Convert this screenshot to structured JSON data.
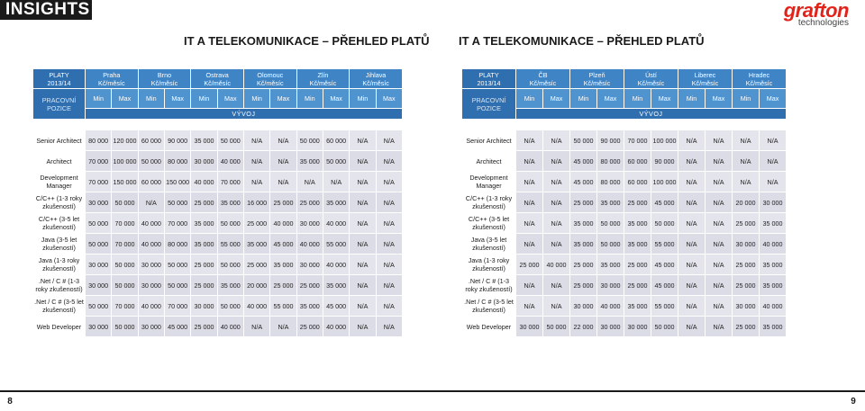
{
  "header": {
    "insights": "INSIGHTS",
    "logo_main": "grafton",
    "logo_sub": "technologies"
  },
  "pages": [
    {
      "title": "IT A TELEKOMUNIKACE – PŘEHLED PLATŮ",
      "corner_line1": "PLATY",
      "corner_line2": "2013/14",
      "corner_line3": "PRACOVNÍ",
      "corner_line4": "POZICE",
      "cities": [
        {
          "name": "Praha",
          "unit": "Kč/měsíc"
        },
        {
          "name": "Brno",
          "unit": "Kč/měsíc"
        },
        {
          "name": "Ostrava",
          "unit": "Kč/měsíc"
        },
        {
          "name": "Olomouc",
          "unit": "Kč/měsíc"
        },
        {
          "name": "Zlín",
          "unit": "Kč/měsíc"
        },
        {
          "name": "Jihlava",
          "unit": "Kč/měsíc"
        }
      ],
      "min_label": "Min",
      "max_label": "Max",
      "section": "VÝVOJ",
      "rows": [
        {
          "role": "Senior Architect",
          "bold": true,
          "values": [
            "80 000",
            "120 000",
            "60 000",
            "90 000",
            "35 000",
            "50 000",
            "N/A",
            "N/A",
            "50 000",
            "60 000",
            "N/A",
            "N/A"
          ]
        },
        {
          "role": "Architect",
          "bold": true,
          "values": [
            "70 000",
            "100 000",
            "50 000",
            "80 000",
            "30 000",
            "40 000",
            "N/A",
            "N/A",
            "35 000",
            "50 000",
            "N/A",
            "N/A"
          ]
        },
        {
          "role": "Development Manager",
          "bold": false,
          "values": [
            "70 000",
            "150 000",
            "60 000",
            "150 000",
            "40 000",
            "70 000",
            "N/A",
            "N/A",
            "N/A",
            "N/A",
            "N/A",
            "N/A"
          ]
        },
        {
          "role": "C/C++ (1-3 roky zkušeností)",
          "bold": false,
          "values": [
            "30 000",
            "50 000",
            "N/A",
            "50 000",
            "25 000",
            "35 000",
            "16 000",
            "25 000",
            "25 000",
            "35 000",
            "N/A",
            "N/A"
          ]
        },
        {
          "role": "C/C++ (3-5 let zkušeností)",
          "bold": false,
          "values": [
            "50 000",
            "70 000",
            "40 000",
            "70 000",
            "35 000",
            "50 000",
            "25 000",
            "40 000",
            "30 000",
            "40 000",
            "N/A",
            "N/A"
          ]
        },
        {
          "role": "Java (3-5 let zkušeností)",
          "bold": false,
          "values": [
            "50 000",
            "70 000",
            "40 000",
            "80 000",
            "35 000",
            "55 000",
            "35 000",
            "45 000",
            "40 000",
            "55 000",
            "N/A",
            "N/A"
          ]
        },
        {
          "role": "Java (1-3 roky zkušeností)",
          "bold": false,
          "values": [
            "30 000",
            "50 000",
            "30 000",
            "50 000",
            "25 000",
            "50 000",
            "25 000",
            "35 000",
            "30 000",
            "40 000",
            "N/A",
            "N/A"
          ]
        },
        {
          "role": ".Net / C # (1-3 roky zkušeností)",
          "bold": false,
          "values": [
            "30 000",
            "50 000",
            "30 000",
            "50 000",
            "25 000",
            "35 000",
            "20 000",
            "25 000",
            "25 000",
            "35 000",
            "N/A",
            "N/A"
          ]
        },
        {
          "role": ".Net / C # (3-5 let zkušeností)",
          "bold": false,
          "values": [
            "50 000",
            "70 000",
            "40 000",
            "70 000",
            "30 000",
            "50 000",
            "40 000",
            "55 000",
            "35 000",
            "45 000",
            "N/A",
            "N/A"
          ]
        },
        {
          "role": "Web Developer",
          "bold": true,
          "values": [
            "30 000",
            "50 000",
            "30 000",
            "45 000",
            "25 000",
            "40 000",
            "N/A",
            "N/A",
            "25 000",
            "40 000",
            "N/A",
            "N/A"
          ]
        }
      ],
      "page_number": "8"
    },
    {
      "title": "IT A TELEKOMUNIKACE – PŘEHLED PLATŮ",
      "corner_line1": "PLATY",
      "corner_line2": "2013/14",
      "corner_line3": "PRACOVNÍ",
      "corner_line4": "POZICE",
      "cities": [
        {
          "name": "ČB",
          "unit": "Kč/měsíc"
        },
        {
          "name": "Plzeň",
          "unit": "Kč/měsíc"
        },
        {
          "name": "Ústí",
          "unit": "Kč/měsíc"
        },
        {
          "name": "Liberec",
          "unit": "Kč/měsíc"
        },
        {
          "name": "Hradec",
          "unit": "Kč/měsíc"
        }
      ],
      "min_label": "Min",
      "max_label": "Max",
      "section": "VÝVOJ",
      "rows": [
        {
          "role": "Senior Architect",
          "bold": true,
          "values": [
            "N/A",
            "N/A",
            "50 000",
            "90 000",
            "70 000",
            "100 000",
            "N/A",
            "N/A",
            "N/A",
            "N/A"
          ]
        },
        {
          "role": "Architect",
          "bold": true,
          "values": [
            "N/A",
            "N/A",
            "45 000",
            "80 000",
            "60 000",
            "90 000",
            "N/A",
            "N/A",
            "N/A",
            "N/A"
          ]
        },
        {
          "role": "Development Manager",
          "bold": false,
          "values": [
            "N/A",
            "N/A",
            "45 000",
            "80 000",
            "60 000",
            "100 000",
            "N/A",
            "N/A",
            "N/A",
            "N/A"
          ]
        },
        {
          "role": "C/C++ (1-3 roky zkušeností)",
          "bold": false,
          "values": [
            "N/A",
            "N/A",
            "25 000",
            "35 000",
            "25 000",
            "45 000",
            "N/A",
            "N/A",
            "20 000",
            "30 000"
          ]
        },
        {
          "role": "C/C++ (3-5 let zkušeností)",
          "bold": false,
          "values": [
            "N/A",
            "N/A",
            "35 000",
            "50 000",
            "35 000",
            "50 000",
            "N/A",
            "N/A",
            "25 000",
            "35 000"
          ]
        },
        {
          "role": "Java (3-5 let zkušeností)",
          "bold": false,
          "values": [
            "N/A",
            "N/A",
            "35 000",
            "50 000",
            "35 000",
            "55 000",
            "N/A",
            "N/A",
            "30 000",
            "40 000"
          ]
        },
        {
          "role": "Java (1-3 roky zkušeností)",
          "bold": false,
          "values": [
            "25 000",
            "40 000",
            "25 000",
            "35 000",
            "25 000",
            "45 000",
            "N/A",
            "N/A",
            "25 000",
            "35 000"
          ]
        },
        {
          "role": ".Net / C # (1-3 roky zkušeností)",
          "bold": false,
          "values": [
            "N/A",
            "N/A",
            "25 000",
            "30 000",
            "25 000",
            "45 000",
            "N/A",
            "N/A",
            "25 000",
            "35 000"
          ]
        },
        {
          "role": ".Net / C # (3-5 let zkušeností)",
          "bold": false,
          "values": [
            "N/A",
            "N/A",
            "30 000",
            "40 000",
            "35 000",
            "55 000",
            "N/A",
            "N/A",
            "30 000",
            "40 000"
          ]
        },
        {
          "role": "Web Developer",
          "bold": true,
          "values": [
            "30 000",
            "50 000",
            "22 000",
            "30 000",
            "30 000",
            "50 000",
            "N/A",
            "N/A",
            "25 000",
            "35 000"
          ]
        }
      ],
      "page_number": "9"
    }
  ]
}
